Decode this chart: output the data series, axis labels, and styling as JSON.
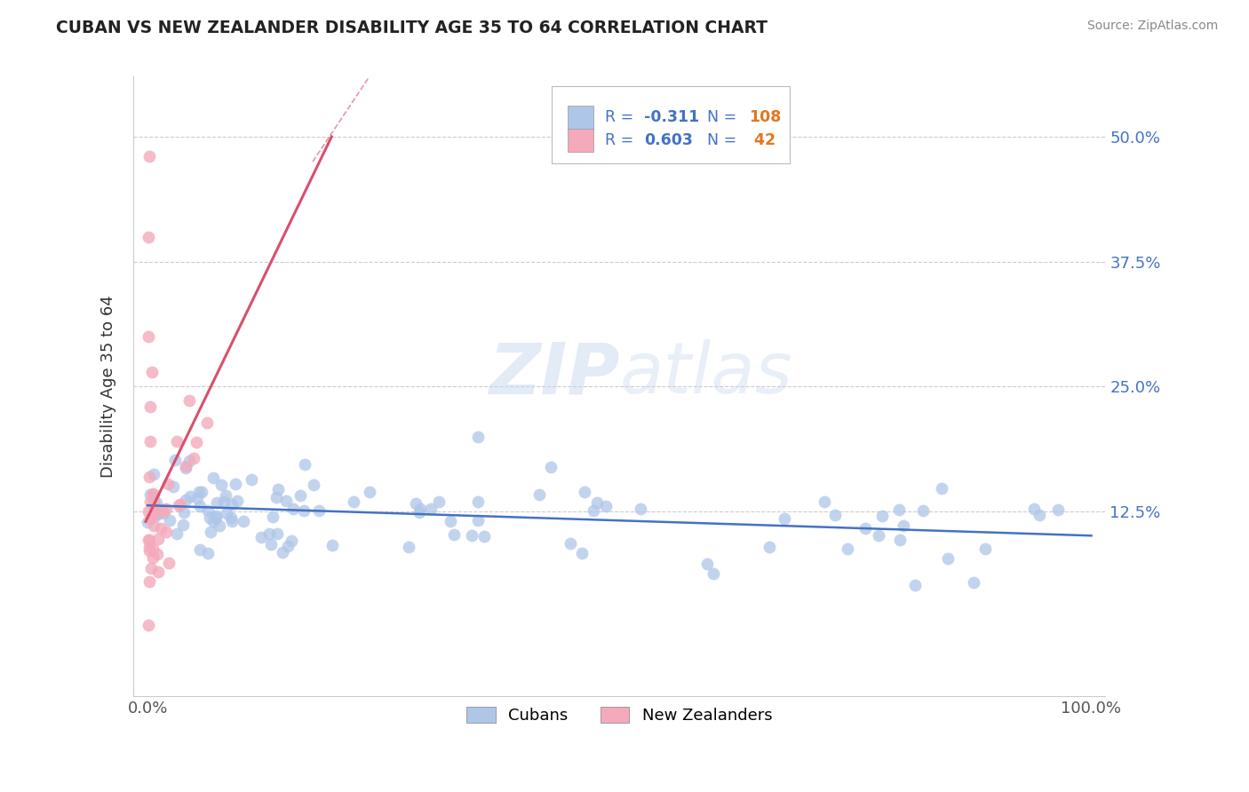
{
  "title": "CUBAN VS NEW ZEALANDER DISABILITY AGE 35 TO 64 CORRELATION CHART",
  "source": "Source: ZipAtlas.com",
  "ylabel": "Disability Age 35 to 64",
  "legend_labels": [
    "Cubans",
    "New Zealanders"
  ],
  "blue_R": -0.311,
  "blue_N": 108,
  "pink_R": 0.603,
  "pink_N": 42,
  "blue_color": "#AEC6E8",
  "pink_color": "#F4AABB",
  "blue_line_color": "#4472C4",
  "pink_line_color": "#D94F6E",
  "legend_text_color": "#4472C4",
  "legend_n_color": "#E07820",
  "grid_color": "#CCCCCC",
  "right_tick_color": "#4472C4",
  "xlim": [
    0.0,
    1.0
  ],
  "ylim": [
    -0.06,
    0.56
  ],
  "ytick_vals": [
    0.0,
    0.125,
    0.25,
    0.375,
    0.5
  ],
  "right_ytick_labels": [
    "",
    "12.5%",
    "25.0%",
    "37.5%",
    "50.0%"
  ],
  "xtick_vals": [
    0.0,
    1.0
  ],
  "xtick_labels": [
    "0.0%",
    "100.0%"
  ]
}
